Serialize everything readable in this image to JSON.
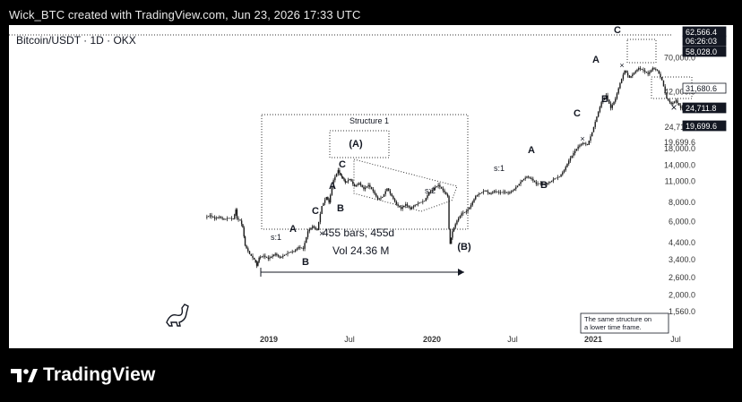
{
  "header": {
    "caption": "Wick_BTC created with TradingView.com, Jun 23, 2026 17:33 UTC"
  },
  "chart_data": {
    "type": "candlestick",
    "symbol": "Bitcoin/USDT · 1D · OKX",
    "y_scale": "log",
    "y_ticks": [
      "70,000.0",
      "42,000.0",
      "24,711.8",
      "19,699.6",
      "18,000.0",
      "14,000.0",
      "11,000.0",
      "8,000.0",
      "6,000.0",
      "4,400.0",
      "3,400.0",
      "2,600.0",
      "2,000.0",
      "1,560.0"
    ],
    "price_tags": [
      {
        "text": "62,566.4",
        "style": "dark"
      },
      {
        "text": "06:26:03",
        "style": "dark"
      },
      {
        "text": "58,028.0",
        "style": "dark"
      },
      {
        "text": "31,680.6",
        "style": "outline"
      },
      {
        "text": "24,711.8",
        "style": "dark"
      },
      {
        "text": "19,699.6",
        "style": "dark"
      }
    ],
    "x_ticks": [
      "2019",
      "Jul",
      "2020",
      "Jul",
      "2021",
      "Jul"
    ],
    "wave_labels": [
      "s:1",
      "A",
      "B",
      "C",
      "A",
      "B",
      "C",
      "(A)",
      "s:2",
      "(B)",
      "s:1",
      "A",
      "B",
      "C",
      "A",
      "B",
      "C",
      "Structure 1"
    ],
    "measure": {
      "bars": "455 bars, 455d",
      "vol": "Vol 24.36 M"
    },
    "note": [
      "The same structure on",
      "a lower time frame."
    ],
    "price_path": [
      [
        0,
        6400
      ],
      [
        0.02,
        6600
      ],
      [
        0.04,
        6300
      ],
      [
        0.06,
        6450
      ],
      [
        0.08,
        6200
      ],
      [
        0.1,
        6350
      ],
      [
        0.12,
        6250
      ],
      [
        0.13,
        7200
      ],
      [
        0.135,
        6300
      ],
      [
        0.15,
        6100
      ],
      [
        0.16,
        5500
      ],
      [
        0.17,
        4200
      ],
      [
        0.19,
        3700
      ],
      [
        0.21,
        3400
      ],
      [
        0.22,
        3100
      ],
      [
        0.23,
        3500
      ],
      [
        0.25,
        3600
      ],
      [
        0.27,
        3450
      ],
      [
        0.3,
        3700
      ],
      [
        0.32,
        3500
      ],
      [
        0.34,
        3650
      ],
      [
        0.36,
        3800
      ],
      [
        0.38,
        3850
      ],
      [
        0.4,
        4100
      ],
      [
        0.42,
        4000
      ],
      [
        0.44,
        5200
      ],
      [
        0.46,
        5600
      ],
      [
        0.48,
        5300
      ],
      [
        0.5,
        7600
      ],
      [
        0.52,
        8700
      ],
      [
        0.53,
        8000
      ],
      [
        0.55,
        11200
      ],
      [
        0.57,
        13000
      ],
      [
        0.58,
        12000
      ],
      [
        0.59,
        11500
      ],
      [
        0.6,
        10800
      ],
      [
        0.62,
        11400
      ],
      [
        0.64,
        10200
      ],
      [
        0.66,
        10700
      ],
      [
        0.68,
        9800
      ],
      [
        0.7,
        10400
      ],
      [
        0.72,
        9500
      ],
      [
        0.74,
        8400
      ],
      [
        0.76,
        8700
      ],
      [
        0.78,
        9900
      ],
      [
        0.8,
        8800
      ],
      [
        0.82,
        7800
      ],
      [
        0.84,
        7300
      ],
      [
        0.86,
        7800
      ],
      [
        0.88,
        7300
      ],
      [
        0.9,
        7700
      ],
      [
        0.92,
        8000
      ],
      [
        0.94,
        8200
      ],
      [
        0.96,
        9300
      ],
      [
        0.98,
        9900
      ],
      [
        1.0,
        10400
      ],
      [
        1.02,
        9600
      ],
      [
        1.04,
        8800
      ],
      [
        1.045,
        5400
      ],
      [
        1.05,
        4300
      ],
      [
        1.06,
        5200
      ],
      [
        1.08,
        6100
      ],
      [
        1.1,
        6800
      ],
      [
        1.12,
        7000
      ],
      [
        1.14,
        7700
      ],
      [
        1.16,
        8800
      ],
      [
        1.18,
        9200
      ],
      [
        1.2,
        9600
      ],
      [
        1.22,
        9100
      ],
      [
        1.24,
        9500
      ],
      [
        1.26,
        9300
      ],
      [
        1.28,
        9400
      ],
      [
        1.3,
        9200
      ],
      [
        1.32,
        9600
      ],
      [
        1.34,
        10300
      ],
      [
        1.36,
        11200
      ],
      [
        1.38,
        11800
      ],
      [
        1.4,
        11400
      ],
      [
        1.42,
        10600
      ],
      [
        1.44,
        10700
      ],
      [
        1.46,
        10500
      ],
      [
        1.48,
        10900
      ],
      [
        1.5,
        11500
      ],
      [
        1.52,
        11800
      ],
      [
        1.54,
        13000
      ],
      [
        1.56,
        15000
      ],
      [
        1.58,
        16800
      ],
      [
        1.6,
        18500
      ],
      [
        1.62,
        19500
      ],
      [
        1.64,
        19000
      ],
      [
        1.66,
        23000
      ],
      [
        1.68,
        29000
      ],
      [
        1.7,
        36000
      ],
      [
        1.72,
        40000
      ],
      [
        1.74,
        33000
      ],
      [
        1.76,
        38000
      ],
      [
        1.78,
        48000
      ],
      [
        1.8,
        58000
      ],
      [
        1.82,
        52000
      ],
      [
        1.84,
        56000
      ],
      [
        1.86,
        60000
      ],
      [
        1.88,
        58000
      ],
      [
        1.9,
        55000
      ],
      [
        1.92,
        60000
      ],
      [
        1.94,
        58000
      ],
      [
        1.96,
        50000
      ],
      [
        1.98,
        38000
      ],
      [
        2.0,
        35000
      ],
      [
        2.02,
        37000
      ],
      [
        2.04,
        33000
      ],
      [
        2.06,
        34000
      ],
      [
        2.08,
        31680
      ]
    ]
  },
  "footer": {
    "brand": "TradingView"
  }
}
